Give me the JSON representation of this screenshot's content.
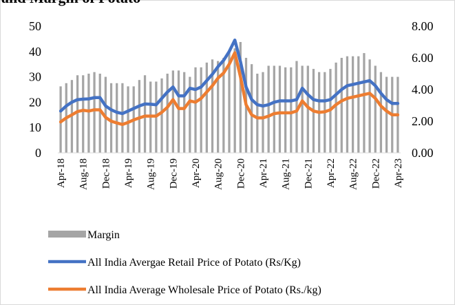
{
  "chart_data": {
    "type": "bar-line",
    "title": "and Margin of Potato",
    "categories": [
      "Apr-18",
      null,
      null,
      null,
      "Aug-18",
      null,
      null,
      null,
      "Dec-18",
      null,
      null,
      null,
      "Apr-19",
      null,
      null,
      null,
      "Aug-19",
      null,
      null,
      null,
      "Dec-19",
      null,
      null,
      null,
      "Apr-20",
      null,
      null,
      null,
      "Aug-20",
      null,
      null,
      null,
      "Dec-20",
      null,
      null,
      null,
      "Apr-21",
      null,
      null,
      null,
      "Aug-21",
      null,
      null,
      null,
      "Dec-21",
      null,
      null,
      null,
      "Apr-22",
      null,
      null,
      null,
      "Aug-22",
      null,
      null,
      null,
      "Dec-22",
      null,
      null,
      null,
      "Apr-23"
    ],
    "series": [
      {
        "name": "Margin",
        "kind": "bar",
        "axis": "y2",
        "color": "#a5a5a5",
        "values": [
          4.2,
          4.4,
          4.6,
          4.9,
          4.9,
          5.0,
          5.1,
          5.0,
          4.8,
          4.4,
          4.4,
          4.4,
          4.2,
          4.2,
          4.6,
          4.9,
          4.5,
          4.5,
          4.7,
          5.0,
          5.2,
          5.2,
          5.1,
          4.8,
          5.4,
          5.4,
          5.7,
          5.9,
          5.8,
          6.0,
          6.4,
          6.6,
          7.0,
          6.0,
          5.6,
          5.0,
          5.1,
          5.5,
          5.5,
          5.5,
          5.4,
          5.4,
          5.8,
          5.5,
          5.5,
          5.3,
          5.1,
          5.1,
          5.3,
          5.7,
          6.0,
          6.1,
          6.1,
          6.1,
          6.3,
          5.9,
          5.5,
          5.1,
          4.8,
          4.8,
          4.8
        ]
      },
      {
        "name": "All India Avergae  Retail Price of Potato (Rs/Kg)",
        "kind": "line",
        "axis": "y",
        "color": "#4472c4",
        "values": [
          16.5,
          18.5,
          20,
          21,
          21.2,
          21.3,
          21.8,
          21.8,
          18.5,
          17,
          16,
          15.5,
          16.5,
          17.5,
          18.5,
          19.3,
          19.2,
          19,
          21.5,
          24,
          26,
          22.5,
          22.5,
          25.5,
          25,
          26,
          28.5,
          31,
          34,
          36.5,
          40,
          44.5,
          36,
          26,
          21,
          19,
          18.5,
          19,
          20,
          20.5,
          20.5,
          20.5,
          21,
          25.5,
          23,
          21,
          20.5,
          20.5,
          21,
          23,
          25,
          26.5,
          27,
          27.5,
          28,
          28.5,
          26.5,
          23.5,
          21,
          19.5,
          19.5
        ]
      },
      {
        "name": "All India Average Wholesale Price of Potato  (Rs./kg)",
        "kind": "line",
        "axis": "y",
        "color": "#ed7d31",
        "values": [
          12.2,
          13.8,
          15,
          16.3,
          16.8,
          16.5,
          17,
          17,
          14,
          12.5,
          11.8,
          11.2,
          12,
          13,
          13.8,
          14.5,
          14.5,
          14.5,
          16,
          18,
          21,
          17.5,
          17.5,
          20.5,
          20,
          21.5,
          24,
          26.5,
          29.5,
          31.5,
          35,
          39.5,
          30,
          19,
          15,
          13.8,
          13.8,
          14.5,
          15.5,
          15.8,
          15.8,
          15.8,
          16.5,
          20.5,
          18,
          16.5,
          16,
          16.2,
          17,
          19,
          20.5,
          21.5,
          22,
          22.5,
          23,
          23.5,
          21.5,
          18.5,
          16.5,
          15,
          15
        ]
      }
    ],
    "ylim": [
      0,
      50
    ],
    "yticks": [
      0,
      10,
      20,
      30,
      40,
      50
    ],
    "y2lim": [
      0,
      8
    ],
    "y2ticks": [
      {
        "value": 0,
        "label": "0.00"
      },
      {
        "value": 2,
        "label": "2.00"
      },
      {
        "value": 4,
        "label": "4.00"
      },
      {
        "value": 6,
        "label": "6.00"
      },
      {
        "value": 8,
        "label": "8.00"
      }
    ],
    "legend": "bottom"
  }
}
